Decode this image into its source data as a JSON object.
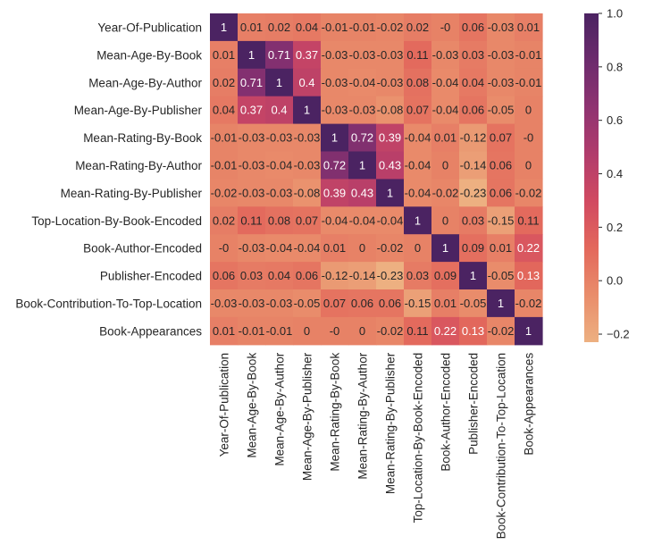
{
  "chart_data": {
    "type": "heatmap",
    "title": "",
    "xlabel": "",
    "ylabel": "",
    "row_labels": [
      "Year-Of-Publication",
      "Mean-Age-By-Book",
      "Mean-Age-By-Author",
      "Mean-Age-By-Publisher",
      "Mean-Rating-By-Book",
      "Mean-Rating-By-Author",
      "Mean-Rating-By-Publisher",
      "Top-Location-By-Book-Encoded",
      "Book-Author-Encoded",
      "Publisher-Encoded",
      "Book-Contribution-To-Top-Location",
      "Book-Appearances"
    ],
    "col_labels": [
      "Year-Of-Publication",
      "Mean-Age-By-Book",
      "Mean-Age-By-Author",
      "Mean-Age-By-Publisher",
      "Mean-Rating-By-Book",
      "Mean-Rating-By-Author",
      "Mean-Rating-By-Publisher",
      "Top-Location-By-Book-Encoded",
      "Book-Author-Encoded",
      "Publisher-Encoded",
      "Book-Contribution-To-Top-Location",
      "Book-Appearances"
    ],
    "values": [
      [
        1,
        0.01,
        0.02,
        0.04,
        -0.01,
        -0.01,
        -0.02,
        0.02,
        -0.0,
        0.06,
        -0.03,
        0.01
      ],
      [
        0.01,
        1,
        0.71,
        0.37,
        -0.03,
        -0.03,
        -0.03,
        0.11,
        -0.03,
        0.03,
        -0.03,
        -0.01
      ],
      [
        0.02,
        0.71,
        1,
        0.4,
        -0.03,
        -0.04,
        -0.03,
        0.08,
        -0.04,
        0.04,
        -0.03,
        -0.01
      ],
      [
        0.04,
        0.37,
        0.4,
        1,
        -0.03,
        -0.03,
        -0.08,
        0.07,
        -0.04,
        0.06,
        -0.05,
        0
      ],
      [
        -0.01,
        -0.03,
        -0.03,
        -0.03,
        1,
        0.72,
        0.39,
        -0.04,
        0.01,
        -0.12,
        0.07,
        -0.0
      ],
      [
        -0.01,
        -0.03,
        -0.04,
        -0.03,
        0.72,
        1,
        0.43,
        -0.04,
        0,
        -0.14,
        0.06,
        0
      ],
      [
        -0.02,
        -0.03,
        -0.03,
        -0.08,
        0.39,
        0.43,
        1,
        -0.04,
        -0.02,
        -0.23,
        0.06,
        -0.02
      ],
      [
        0.02,
        0.11,
        0.08,
        0.07,
        -0.04,
        -0.04,
        -0.04,
        1,
        0,
        0.03,
        -0.15,
        0.11
      ],
      [
        -0.0,
        -0.03,
        -0.04,
        -0.04,
        0.01,
        0,
        -0.02,
        0,
        1,
        0.09,
        0.01,
        0.22
      ],
      [
        0.06,
        0.03,
        0.04,
        0.06,
        -0.12,
        -0.14,
        -0.23,
        0.03,
        0.09,
        1,
        -0.05,
        0.13
      ],
      [
        -0.03,
        -0.03,
        -0.03,
        -0.05,
        0.07,
        0.06,
        0.06,
        -0.15,
        0.01,
        -0.05,
        1,
        -0.02
      ],
      [
        0.01,
        -0.01,
        -0.01,
        0,
        -0.0,
        0,
        -0.02,
        0.11,
        0.22,
        0.13,
        -0.02,
        1
      ]
    ],
    "cell_text": [
      [
        "1",
        "0.01",
        "0.02",
        "0.04",
        "-0.01",
        "-0.01",
        "-0.02",
        "0.02",
        "-0",
        "0.06",
        "-0.03",
        "0.01"
      ],
      [
        "0.01",
        "1",
        "0.71",
        "0.37",
        "-0.03",
        "-0.03",
        "-0.03",
        "0.11",
        "-0.03",
        "0.03",
        "-0.03",
        "-0.01"
      ],
      [
        "0.02",
        "0.71",
        "1",
        "0.4",
        "-0.03",
        "-0.04",
        "-0.03",
        "0.08",
        "-0.04",
        "0.04",
        "-0.03",
        "-0.01"
      ],
      [
        "0.04",
        "0.37",
        "0.4",
        "1",
        "-0.03",
        "-0.03",
        "-0.08",
        "0.07",
        "-0.04",
        "0.06",
        "-0.05",
        "0"
      ],
      [
        "-0.01",
        "-0.03",
        "-0.03",
        "-0.03",
        "1",
        "0.72",
        "0.39",
        "-0.04",
        "0.01",
        "-0.12",
        "0.07",
        "-0"
      ],
      [
        "-0.01",
        "-0.03",
        "-0.04",
        "-0.03",
        "0.72",
        "1",
        "0.43",
        "-0.04",
        "0",
        "-0.14",
        "0.06",
        "0"
      ],
      [
        "-0.02",
        "-0.03",
        "-0.03",
        "-0.08",
        "0.39",
        "0.43",
        "1",
        "-0.04",
        "-0.02",
        "-0.23",
        "0.06",
        "-0.02"
      ],
      [
        "0.02",
        "0.11",
        "0.08",
        "0.07",
        "-0.04",
        "-0.04",
        "-0.04",
        "1",
        "0",
        "0.03",
        "-0.15",
        "0.11"
      ],
      [
        "-0",
        "-0.03",
        "-0.04",
        "-0.04",
        "0.01",
        "0",
        "-0.02",
        "0",
        "1",
        "0.09",
        "0.01",
        "0.22"
      ],
      [
        "0.06",
        "0.03",
        "0.04",
        "0.06",
        "-0.12",
        "-0.14",
        "-0.23",
        "0.03",
        "0.09",
        "1",
        "-0.05",
        "0.13"
      ],
      [
        "-0.03",
        "-0.03",
        "-0.03",
        "-0.05",
        "0.07",
        "0.06",
        "0.06",
        "-0.15",
        "0.01",
        "-0.05",
        "1",
        "-0.02"
      ],
      [
        "0.01",
        "-0.01",
        "-0.01",
        "0",
        "-0",
        "0",
        "-0.02",
        "0.11",
        "0.22",
        "0.13",
        "-0.02",
        "1"
      ]
    ],
    "colormap": "flare",
    "colormap_stops": [
      "#edb081",
      "#e98d6b",
      "#e3685c",
      "#d14a61",
      "#b13c6c",
      "#8f3371",
      "#6c2b6d",
      "#4b2362"
    ],
    "vmin": -0.23,
    "vmax": 1.0,
    "colorbar": {
      "ticks": [
        1.0,
        0.8,
        0.6,
        0.4,
        0.2,
        0.0,
        -0.2
      ],
      "tick_labels": [
        "1.0",
        "0.8",
        "0.6",
        "0.4",
        "0.2",
        "0.0",
        "−0.2"
      ]
    },
    "grid": false,
    "legend": "colorbar-right"
  }
}
